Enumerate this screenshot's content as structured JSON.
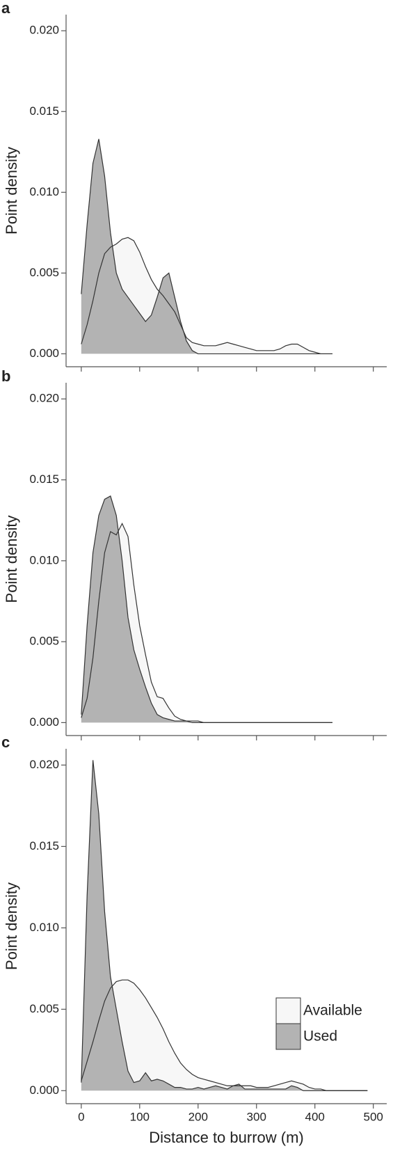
{
  "chart_data": [
    {
      "type": "area",
      "panel_label": "a",
      "ylabel": "Point density",
      "x": [
        0,
        10,
        20,
        30,
        40,
        50,
        60,
        70,
        80,
        90,
        100,
        110,
        120,
        130,
        140,
        150,
        160,
        170,
        180,
        190,
        200,
        210,
        220,
        230,
        240,
        250,
        260,
        270,
        280,
        290,
        300,
        310,
        320,
        330,
        340,
        350,
        360,
        370,
        380,
        390,
        400,
        410,
        420,
        430
      ],
      "series": [
        {
          "color": "#f7f7f7",
          "values": [
            0.0006,
            0.0018,
            0.0033,
            0.005,
            0.0062,
            0.0066,
            0.0068,
            0.0071,
            0.0072,
            0.007,
            0.0063,
            0.0054,
            0.0046,
            0.004,
            0.0036,
            0.0031,
            0.0026,
            0.0018,
            0.001,
            0.0007,
            0.0006,
            0.0005,
            0.0005,
            0.0005,
            0.0006,
            0.0007,
            0.0006,
            0.0005,
            0.0004,
            0.0003,
            0.0002,
            0.0002,
            0.0002,
            0.0002,
            0.0003,
            0.0005,
            0.0006,
            0.0006,
            0.0004,
            0.0002,
            0.0001,
            0,
            0,
            0
          ]
        },
        {
          "color": "#b3b3b3",
          "values": [
            0.0037,
            0.008,
            0.0118,
            0.0133,
            0.011,
            0.0075,
            0.005,
            0.004,
            0.0035,
            0.003,
            0.0025,
            0.002,
            0.0024,
            0.0035,
            0.0047,
            0.005,
            0.0035,
            0.002,
            0.0008,
            0.0002,
            0,
            0,
            0,
            0,
            0,
            0,
            0,
            0,
            0,
            0,
            0,
            0,
            0,
            0,
            0,
            0,
            0,
            0,
            0,
            0,
            0,
            0,
            0,
            0
          ]
        }
      ],
      "xlim": [
        -26,
        523
      ],
      "ylim": [
        -0.0008,
        0.021
      ],
      "xticks": [
        0,
        100,
        200,
        300,
        400,
        500
      ],
      "show_xtick_labels": false,
      "yticks": [
        {
          "value": 0,
          "label": "0.000"
        },
        0.005,
        {
          "value": 0.01,
          "label": "0.010"
        },
        0.015,
        {
          "value": 0.02,
          "label": "0.020"
        }
      ]
    },
    {
      "type": "area",
      "panel_label": "b",
      "ylabel": "Point density",
      "x": [
        0,
        10,
        20,
        30,
        40,
        50,
        60,
        70,
        80,
        90,
        100,
        110,
        120,
        130,
        140,
        150,
        160,
        170,
        180,
        190,
        200,
        210,
        220,
        230,
        240,
        250,
        260,
        270,
        280,
        290,
        300,
        310,
        320,
        330,
        340,
        350,
        360,
        370,
        380,
        390,
        400,
        410,
        420,
        430
      ],
      "series": [
        {
          "color": "#f7f7f7",
          "values": [
            0.0003,
            0.0015,
            0.004,
            0.0075,
            0.0105,
            0.0118,
            0.0116,
            0.0123,
            0.0115,
            0.0085,
            0.006,
            0.0042,
            0.0025,
            0.0016,
            0.0015,
            0.0009,
            0.0004,
            0.0002,
            0.0001,
            0.0001,
            0.0001,
            0,
            0,
            0,
            0,
            0,
            0,
            0,
            0,
            0,
            0,
            0,
            0,
            0,
            0,
            0,
            0,
            0,
            0,
            0,
            0,
            0,
            0,
            0
          ]
        },
        {
          "color": "#b3b3b3",
          "values": [
            0.0005,
            0.006,
            0.0105,
            0.0128,
            0.0138,
            0.014,
            0.0128,
            0.01,
            0.0065,
            0.0045,
            0.0033,
            0.0022,
            0.0012,
            0.0005,
            0.0003,
            0.0002,
            0.0001,
            0.0001,
            0.0001,
            0,
            0,
            0,
            0,
            0,
            0,
            0,
            0,
            0,
            0,
            0,
            0,
            0,
            0,
            0,
            0,
            0,
            0,
            0,
            0,
            0,
            0,
            0,
            0,
            0
          ]
        }
      ],
      "xlim": [
        -26,
        523
      ],
      "ylim": [
        -0.0008,
        0.021
      ],
      "xticks": [
        0,
        100,
        200,
        300,
        400,
        500
      ],
      "show_xtick_labels": false,
      "yticks": [
        {
          "value": 0,
          "label": "0.000"
        },
        0.005,
        {
          "value": 0.01,
          "label": "0.010"
        },
        0.015,
        {
          "value": 0.02,
          "label": "0.020"
        }
      ]
    },
    {
      "type": "area",
      "panel_label": "c",
      "ylabel": "Point density",
      "xlabel": "Distance to burrow (m)",
      "x": [
        0,
        10,
        20,
        30,
        40,
        50,
        60,
        70,
        80,
        90,
        100,
        110,
        120,
        130,
        140,
        150,
        160,
        170,
        180,
        190,
        200,
        210,
        220,
        230,
        240,
        250,
        260,
        270,
        280,
        290,
        300,
        310,
        320,
        330,
        340,
        350,
        360,
        370,
        380,
        390,
        400,
        410,
        420,
        430,
        440,
        450,
        460,
        470,
        480,
        490
      ],
      "series": [
        {
          "name": "Available",
          "color": "#f7f7f7",
          "values": [
            0.0006,
            0.0018,
            0.003,
            0.0043,
            0.0055,
            0.0063,
            0.0067,
            0.0068,
            0.0068,
            0.0066,
            0.0062,
            0.0057,
            0.0051,
            0.0045,
            0.0038,
            0.003,
            0.0023,
            0.0017,
            0.0013,
            0.001,
            0.0008,
            0.0007,
            0.0006,
            0.0005,
            0.0004,
            0.0003,
            0.0003,
            0.0003,
            0.0003,
            0.0003,
            0.0002,
            0.0002,
            0.0002,
            0.0003,
            0.0004,
            0.0005,
            0.0006,
            0.0005,
            0.0004,
            0.0002,
            0.0001,
            0.0001,
            0,
            0,
            0,
            0,
            0,
            0,
            0,
            0
          ]
        },
        {
          "name": "Used",
          "color": "#b3b3b3",
          "values": [
            0.0005,
            0.012,
            0.0203,
            0.017,
            0.011,
            0.007,
            0.005,
            0.003,
            0.0012,
            0.0005,
            0.0006,
            0.0011,
            0.0006,
            0.0007,
            0.0006,
            0.0004,
            0.0002,
            0.0002,
            0.0001,
            0.0001,
            0.0002,
            0.0001,
            0.0002,
            0.0003,
            0.0002,
            0.0001,
            0.0003,
            0.0004,
            0.0001,
            0.0001,
            0.0001,
            0.0001,
            0.0001,
            0.0001,
            0.0001,
            0.0001,
            0.0003,
            0.0002,
            0,
            0,
            0,
            0,
            0,
            0,
            0,
            0,
            0,
            0,
            0,
            0
          ]
        }
      ],
      "xlim": [
        -26,
        523
      ],
      "ylim": [
        -0.0008,
        0.021
      ],
      "xticks": [
        0,
        100,
        200,
        300,
        400,
        500
      ],
      "show_xtick_labels": true,
      "yticks": [
        {
          "value": 0,
          "label": "0.000"
        },
        0.005,
        {
          "value": 0.01,
          "label": "0.010"
        },
        0.015,
        {
          "value": 0.02,
          "label": "0.020"
        }
      ],
      "legend": "right"
    }
  ]
}
